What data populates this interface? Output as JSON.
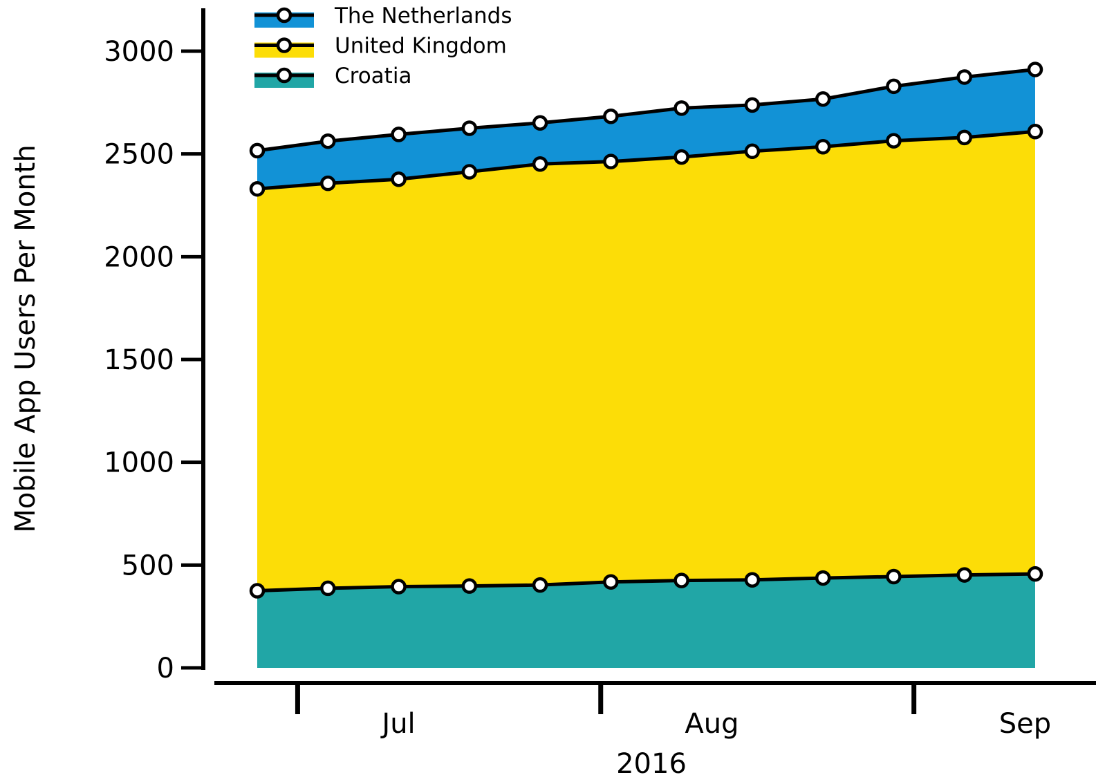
{
  "chart_data": {
    "type": "area",
    "stacked": true,
    "title": "",
    "xlabel": "2016",
    "ylabel": "Mobile App Users Per Month",
    "ylim": [
      0,
      3000
    ],
    "yticks": [
      0,
      500,
      1000,
      1500,
      2000,
      2500,
      3000
    ],
    "x": [
      "2016-06-17",
      "2016-06-24",
      "2016-07-01",
      "2016-07-08",
      "2016-07-15",
      "2016-07-22",
      "2016-07-29",
      "2016-08-05",
      "2016-08-12",
      "2016-08-19",
      "2016-08-26",
      "2016-09-02"
    ],
    "xticks": [
      {
        "date": "2016-06-21",
        "label": ""
      },
      {
        "date": "2016-07-01",
        "label": "Jul"
      },
      {
        "date": "2016-07-21",
        "label": ""
      },
      {
        "date": "2016-08-01",
        "label": "Aug"
      },
      {
        "date": "2016-08-21",
        "label": ""
      },
      {
        "date": "2016-09-01",
        "label": "Sep"
      }
    ],
    "legend_position": "top-left",
    "grid": false,
    "series": [
      {
        "name": "Croatia",
        "color": "#21a6a6",
        "values": [
          375,
          387,
          395,
          398,
          403,
          418,
          425,
          428,
          437,
          444,
          452,
          457
        ]
      },
      {
        "name": "United Kingdom",
        "color": "#fcdd07",
        "values": [
          1955,
          1970,
          1982,
          2015,
          2048,
          2045,
          2060,
          2085,
          2098,
          2120,
          2128,
          2152
        ]
      },
      {
        "name": "The Netherlands",
        "color": "#1292d6",
        "values": [
          186,
          205,
          218,
          212,
          200,
          220,
          238,
          225,
          232,
          265,
          294,
          302
        ]
      }
    ],
    "legend_order": [
      "The Netherlands",
      "United Kingdom",
      "Croatia"
    ]
  }
}
